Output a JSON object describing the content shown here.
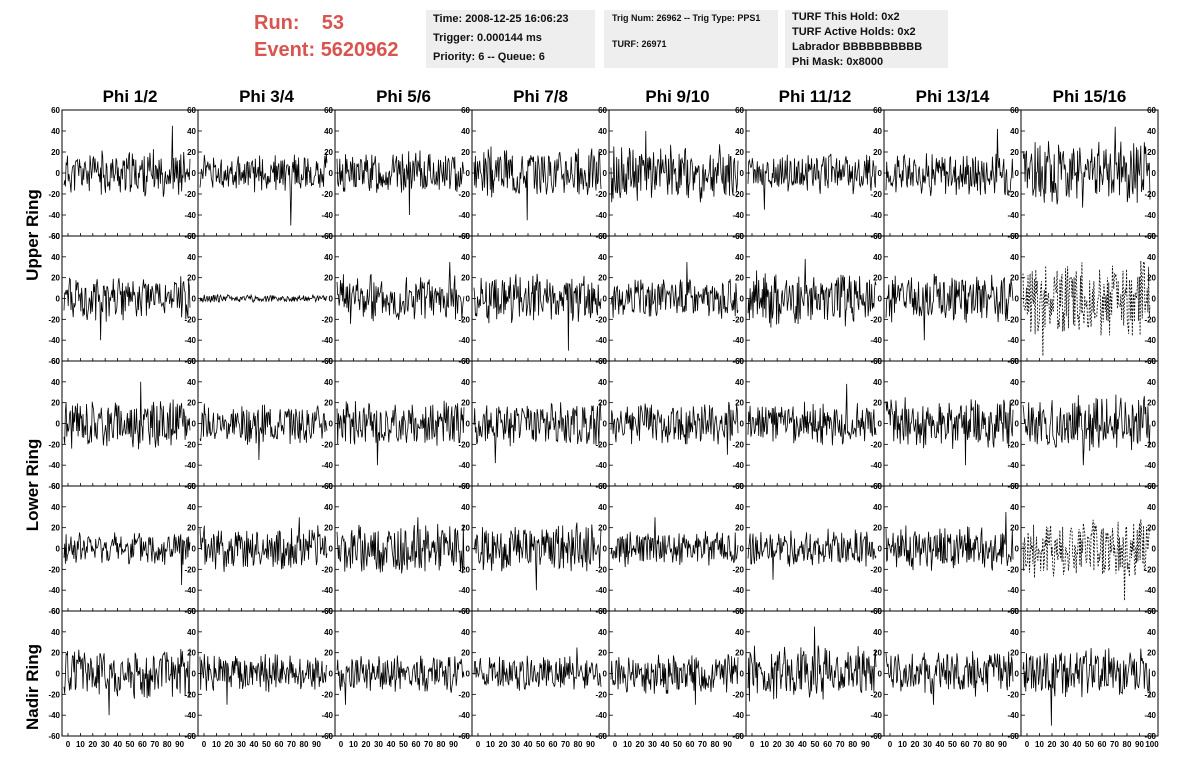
{
  "header": {
    "run_label": "Run:",
    "run_value": "53",
    "event_label": "Event:",
    "event_value": "5620962",
    "run_color": "#d9534f"
  },
  "info_time": {
    "time": "Time: 2008-12-25 16:06:23",
    "trigger": "Trigger: 0.000144 ms",
    "priority": "Priority: 6 -- Queue: 6"
  },
  "info_trig": {
    "trig": "Trig Num: 26962 -- Trig Type: PPS1",
    "turf": "TURF: 26971"
  },
  "info_turf": {
    "hold": "TURF This Hold: 0x2",
    "active": "TURF Active Holds: 0x2",
    "labrador": "Labrador BBBBBBBBBB",
    "mask": "Phi Mask: 0x8000"
  },
  "columns": [
    "Phi 1/2",
    "Phi 3/4",
    "Phi 5/6",
    "Phi 7/8",
    "Phi 9/10",
    "Phi 11/12",
    "Phi 13/14",
    "Phi 15/16"
  ],
  "row_labels": [
    "Upper Ring",
    "Lower Ring",
    "Nadir Ring"
  ],
  "chart_data": {
    "type": "line",
    "layout": "grid of waveform panels, 5 rows x 8 columns",
    "xlim": [
      0,
      100
    ],
    "ylim": [
      -60,
      60
    ],
    "x_ticks": [
      0,
      10,
      20,
      30,
      40,
      50,
      60,
      70,
      80,
      90,
      100
    ],
    "y_ticks": [
      -60,
      -40,
      -20,
      0,
      20,
      40,
      60
    ],
    "x_tick_labels_bottom_row": "0 10 20 30 40 50 60 70 80 90 100",
    "panels": [
      {
        "row": 0,
        "col": 0,
        "amplitude": 18,
        "spike": 45,
        "style": "solid",
        "seed": 11
      },
      {
        "row": 0,
        "col": 1,
        "amplitude": 15,
        "spike": -50,
        "style": "solid",
        "seed": 12
      },
      {
        "row": 0,
        "col": 2,
        "amplitude": 17,
        "spike": -40,
        "style": "solid",
        "seed": 13
      },
      {
        "row": 0,
        "col": 3,
        "amplitude": 20,
        "spike": -45,
        "style": "solid",
        "seed": 14
      },
      {
        "row": 0,
        "col": 4,
        "amplitude": 22,
        "spike": 40,
        "style": "solid",
        "seed": 15
      },
      {
        "row": 0,
        "col": 5,
        "amplitude": 16,
        "spike": -35,
        "style": "solid",
        "seed": 16
      },
      {
        "row": 0,
        "col": 6,
        "amplitude": 18,
        "spike": 42,
        "style": "solid",
        "seed": 17
      },
      {
        "row": 0,
        "col": 7,
        "amplitude": 26,
        "spike": 44,
        "style": "solid",
        "seed": 18
      },
      {
        "row": 1,
        "col": 0,
        "amplitude": 18,
        "spike": -40,
        "style": "solid",
        "seed": 21
      },
      {
        "row": 1,
        "col": 1,
        "amplitude": 3,
        "spike": 4,
        "style": "solid",
        "seed": 22
      },
      {
        "row": 1,
        "col": 2,
        "amplitude": 20,
        "spike": 35,
        "style": "solid",
        "seed": 23
      },
      {
        "row": 1,
        "col": 3,
        "amplitude": 20,
        "spike": -50,
        "style": "solid",
        "seed": 24
      },
      {
        "row": 1,
        "col": 4,
        "amplitude": 16,
        "spike": 35,
        "style": "solid",
        "seed": 25
      },
      {
        "row": 1,
        "col": 5,
        "amplitude": 22,
        "spike": 38,
        "style": "solid",
        "seed": 26
      },
      {
        "row": 1,
        "col": 6,
        "amplitude": 20,
        "spike": -40,
        "style": "solid",
        "seed": 27
      },
      {
        "row": 1,
        "col": 7,
        "amplitude": 30,
        "spike": -55,
        "style": "dashed",
        "seed": 28
      },
      {
        "row": 2,
        "col": 0,
        "amplitude": 20,
        "spike": 40,
        "style": "solid",
        "seed": 31
      },
      {
        "row": 2,
        "col": 1,
        "amplitude": 16,
        "spike": -35,
        "style": "solid",
        "seed": 32
      },
      {
        "row": 2,
        "col": 2,
        "amplitude": 18,
        "spike": -40,
        "style": "solid",
        "seed": 33
      },
      {
        "row": 2,
        "col": 3,
        "amplitude": 18,
        "spike": -38,
        "style": "solid",
        "seed": 34
      },
      {
        "row": 2,
        "col": 4,
        "amplitude": 17,
        "spike": -30,
        "style": "solid",
        "seed": 35
      },
      {
        "row": 2,
        "col": 5,
        "amplitude": 17,
        "spike": 38,
        "style": "solid",
        "seed": 36
      },
      {
        "row": 2,
        "col": 6,
        "amplitude": 20,
        "spike": -40,
        "style": "solid",
        "seed": 37
      },
      {
        "row": 2,
        "col": 7,
        "amplitude": 22,
        "spike": -40,
        "style": "solid",
        "seed": 38
      },
      {
        "row": 3,
        "col": 0,
        "amplitude": 14,
        "spike": -35,
        "style": "solid",
        "seed": 41
      },
      {
        "row": 3,
        "col": 1,
        "amplitude": 18,
        "spike": 30,
        "style": "solid",
        "seed": 42
      },
      {
        "row": 3,
        "col": 2,
        "amplitude": 20,
        "spike": 30,
        "style": "solid",
        "seed": 43
      },
      {
        "row": 3,
        "col": 3,
        "amplitude": 20,
        "spike": -40,
        "style": "solid",
        "seed": 44
      },
      {
        "row": 3,
        "col": 4,
        "amplitude": 15,
        "spike": 30,
        "style": "solid",
        "seed": 45
      },
      {
        "row": 3,
        "col": 5,
        "amplitude": 15,
        "spike": -30,
        "style": "solid",
        "seed": 46
      },
      {
        "row": 3,
        "col": 6,
        "amplitude": 18,
        "spike": 35,
        "style": "solid",
        "seed": 47
      },
      {
        "row": 3,
        "col": 7,
        "amplitude": 28,
        "spike": -50,
        "style": "dashed",
        "seed": 48
      },
      {
        "row": 4,
        "col": 0,
        "amplitude": 20,
        "spike": -40,
        "style": "solid",
        "seed": 51
      },
      {
        "row": 4,
        "col": 1,
        "amplitude": 15,
        "spike": -30,
        "style": "solid",
        "seed": 52
      },
      {
        "row": 4,
        "col": 2,
        "amplitude": 15,
        "spike": -30,
        "style": "solid",
        "seed": 53
      },
      {
        "row": 4,
        "col": 3,
        "amplitude": 14,
        "spike": 25,
        "style": "solid",
        "seed": 54
      },
      {
        "row": 4,
        "col": 4,
        "amplitude": 16,
        "spike": -30,
        "style": "solid",
        "seed": 55
      },
      {
        "row": 4,
        "col": 5,
        "amplitude": 22,
        "spike": 45,
        "style": "solid",
        "seed": 56
      },
      {
        "row": 4,
        "col": 6,
        "amplitude": 18,
        "spike": -30,
        "style": "solid",
        "seed": 57
      },
      {
        "row": 4,
        "col": 7,
        "amplitude": 20,
        "spike": -50,
        "style": "solid",
        "seed": 58
      }
    ]
  }
}
